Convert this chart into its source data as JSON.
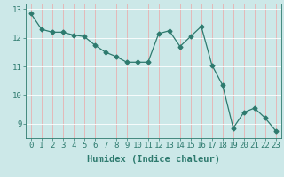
{
  "x": [
    0,
    1,
    2,
    3,
    4,
    5,
    6,
    7,
    8,
    9,
    10,
    11,
    12,
    13,
    14,
    15,
    16,
    17,
    18,
    19,
    20,
    21,
    22,
    23
  ],
  "y": [
    12.85,
    12.3,
    12.2,
    12.2,
    12.1,
    12.05,
    11.75,
    11.5,
    11.35,
    11.15,
    11.15,
    11.15,
    12.15,
    12.25,
    11.7,
    12.05,
    12.4,
    11.05,
    10.35,
    8.85,
    9.4,
    9.55,
    9.2,
    8.75
  ],
  "line_color": "#2d7a6e",
  "marker": "D",
  "marker_size": 2.5,
  "bg_color": "#cce8e8",
  "grid_color_v": "#e8b0b0",
  "grid_color_h": "#ffffff",
  "axis_color": "#2d7a6e",
  "tick_color": "#2d7a6e",
  "xlabel": "Humidex (Indice chaleur)",
  "ylim": [
    8.5,
    13.2
  ],
  "xlim": [
    -0.5,
    23.5
  ],
  "yticks": [
    9,
    10,
    11,
    12,
    13
  ],
  "xticks": [
    0,
    1,
    2,
    3,
    4,
    5,
    6,
    7,
    8,
    9,
    10,
    11,
    12,
    13,
    14,
    15,
    16,
    17,
    18,
    19,
    20,
    21,
    22,
    23
  ],
  "label_fontsize": 7.5,
  "tick_fontsize": 6.5,
  "linewidth": 0.9
}
